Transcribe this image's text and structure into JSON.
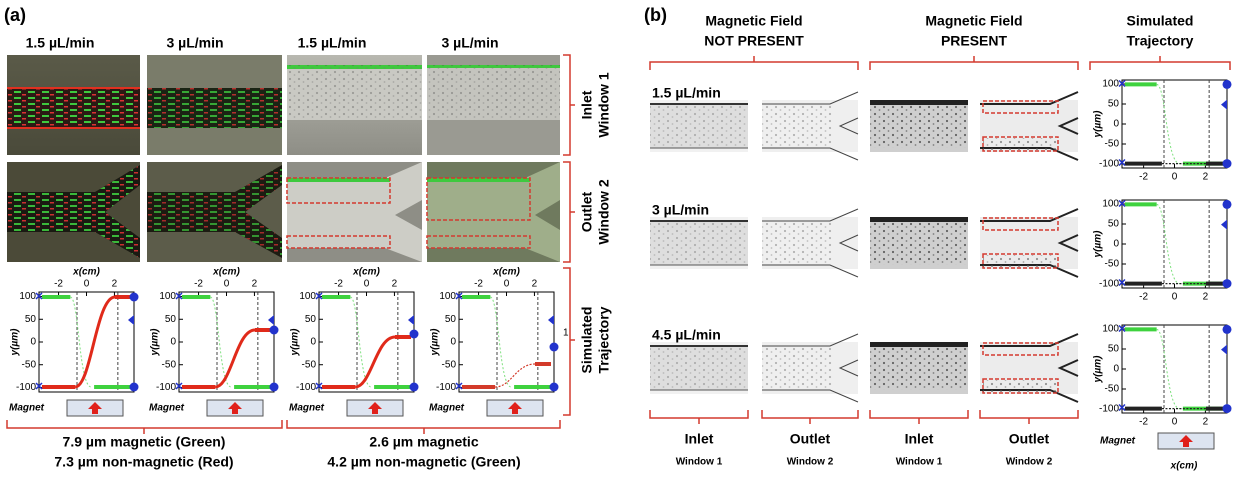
{
  "panel_a": {
    "label": "(a)",
    "column_headers": [
      "1.5 µL/min",
      "3 µL/min",
      "1.5 µL/min",
      "3 µL/min"
    ],
    "row_labels": [
      [
        "Inlet",
        "Window 1"
      ],
      [
        "Outlet",
        "Window 2"
      ],
      [
        "Simulated",
        "Trajectory"
      ]
    ],
    "annotation": "1",
    "captions": [
      [
        "7.9 µm magnetic (Green)",
        "7.3 µm non-magnetic (Red)"
      ],
      [
        "2.6 µm magnetic",
        "4.2 µm non-magnetic (Green)"
      ]
    ]
  },
  "panel_b": {
    "label": "(b)",
    "column_headers": [
      [
        "Magnetic Field",
        "NOT PRESENT"
      ],
      [
        "Magnetic Field",
        "PRESENT"
      ],
      [
        "Simulated",
        "Trajectory"
      ]
    ],
    "row_labels": [
      "1.5 µL/min",
      "3 µL/min",
      "4.5 µL/min"
    ],
    "bottom_labels": [
      [
        "Inlet",
        "Window 1"
      ],
      [
        "Outlet",
        "Window 2"
      ],
      [
        "Inlet",
        "Window 1"
      ],
      [
        "Outlet",
        "Window 2"
      ]
    ]
  },
  "plot": {
    "x_label": "x(cm)",
    "y_label": "y(µm)",
    "magnet_label": "Magnet",
    "xlim": [
      -3.4,
      3.4
    ],
    "ylim": [
      -110,
      110
    ],
    "xticks": [
      -2,
      0,
      2
    ],
    "yticks": [
      100,
      50,
      0,
      -50,
      -100
    ]
  }
}
